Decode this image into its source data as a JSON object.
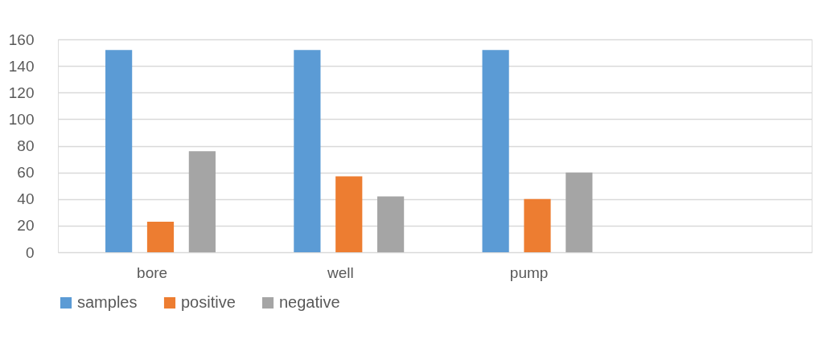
{
  "chart_data": {
    "type": "bar",
    "categories": [
      "bore",
      "well",
      "pump",
      null
    ],
    "series": [
      {
        "name": "samples",
        "color": "#5b9bd5",
        "values": [
          152,
          152,
          152,
          null
        ]
      },
      {
        "name": "positive",
        "color": "#ed7d31",
        "values": [
          23,
          57,
          40,
          null
        ]
      },
      {
        "name": "negative",
        "color": "#a5a5a5",
        "values": [
          76,
          42,
          60,
          null
        ]
      }
    ],
    "ylim": [
      0,
      160
    ],
    "yticks": [
      0,
      20,
      40,
      60,
      80,
      100,
      120,
      140,
      160
    ],
    "grid": "y",
    "legend": "bottom"
  }
}
